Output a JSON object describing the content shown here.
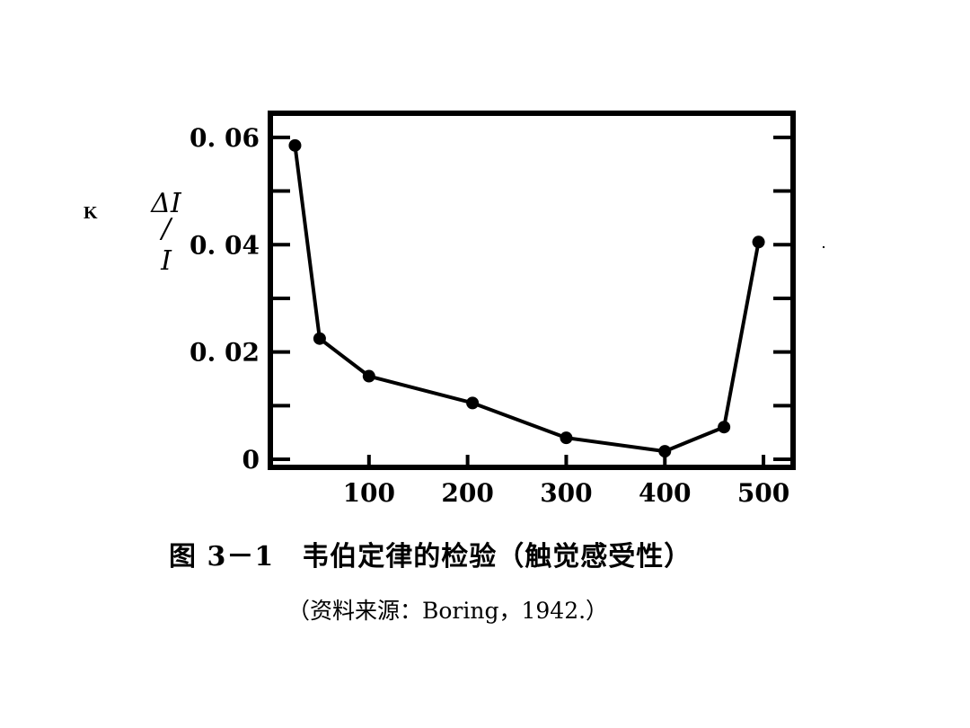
{
  "side_label": "K",
  "caption": "图 3－1　韦伯定律的检验（触觉感受性）",
  "source": "（资料来源：Boring，1942.）",
  "chart_data": {
    "type": "line",
    "x": [
      25,
      50,
      100,
      205,
      300,
      400,
      460,
      495
    ],
    "y": [
      0.0585,
      0.0225,
      0.0155,
      0.0105,
      0.004,
      0.0015,
      0.006,
      0.0405
    ],
    "ylabel_parts": [
      "ΔI",
      "/",
      "I"
    ],
    "xlim": [
      0,
      530
    ],
    "ylim": [
      -0.0015,
      0.0645
    ],
    "xticks": [
      100,
      200,
      300,
      400,
      500
    ],
    "xtick_labels": [
      "100",
      "200",
      "300",
      "400",
      "500"
    ],
    "yticks": [
      0,
      0.02,
      0.04,
      0.06
    ],
    "ytick_labels": [
      "0",
      "0. 02",
      "0. 04",
      "0. 06"
    ],
    "minor_yticks": [
      0.01,
      0.03,
      0.05
    ],
    "line_color": "#000000",
    "grid": false
  }
}
